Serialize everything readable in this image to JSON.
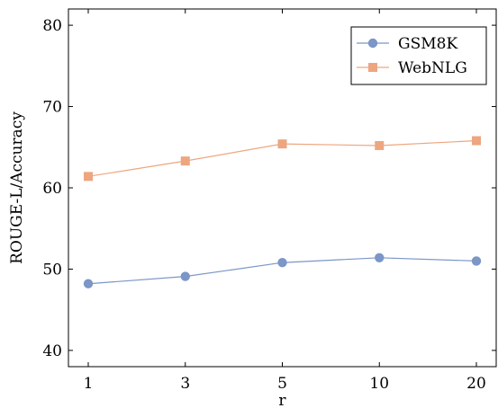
{
  "chart_data": {
    "type": "line",
    "title": "",
    "xlabel": "r",
    "ylabel": "ROUGE-L/Accuracy",
    "categories": [
      "1",
      "3",
      "5",
      "10",
      "20"
    ],
    "ylim": [
      38,
      82
    ],
    "yticks": [
      40,
      50,
      60,
      70,
      80
    ],
    "legend_position": "top-right",
    "grid": false,
    "series": [
      {
        "name": "GSM8K",
        "marker": "circle",
        "color": "#7b96c7",
        "values": [
          48.2,
          49.1,
          50.8,
          51.4,
          51.0
        ]
      },
      {
        "name": "WebNLG",
        "marker": "square",
        "color": "#eda67f",
        "values": [
          61.4,
          63.3,
          65.4,
          65.2,
          65.8
        ]
      }
    ]
  }
}
